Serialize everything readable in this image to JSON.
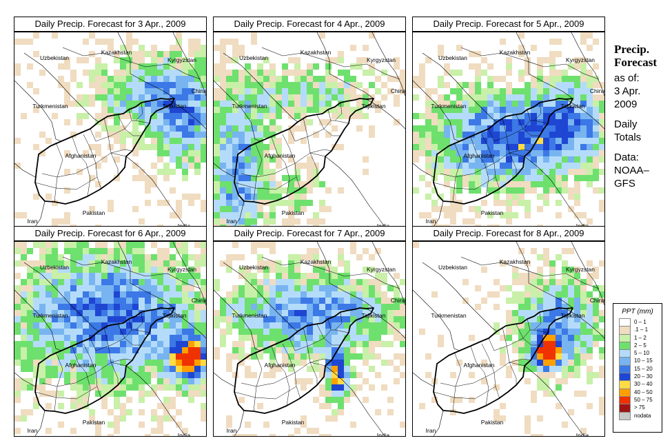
{
  "panels": [
    {
      "title": "Daily Precip. Forecast for  3 Apr., 2009",
      "day": 3
    },
    {
      "title": "Daily Precip. Forecast for  4 Apr., 2009",
      "day": 4
    },
    {
      "title": "Daily Precip. Forecast for  5 Apr., 2009",
      "day": 5
    },
    {
      "title": "Daily Precip. Forecast for  6 Apr., 2009",
      "day": 6
    },
    {
      "title": "Daily Precip. Forecast for  7 Apr., 2009",
      "day": 7
    },
    {
      "title": "Daily Precip. Forecast for  8 Apr., 2009",
      "day": 8
    }
  ],
  "labels": {
    "uzbekistan": "Uzbekistan",
    "kazakhstan": "Kazakhstan",
    "kyrgyzstan": "Kyrgyzstan",
    "china": "China",
    "tajikistan": "Tajikistan",
    "turkmenistan": "Turkmenistan",
    "afghanistan": "Afghanistan",
    "pakistan": "Pakistan",
    "iran": "Iran",
    "india": "India"
  },
  "sidebar": {
    "title_line1": "Precip.",
    "title_line2": "Forecast",
    "asof": "as of:",
    "date_line1": "3 Apr.",
    "date_line2": "2009",
    "totals_line1": "Daily",
    "totals_line2": "Totals",
    "data_line1": "Data:",
    "data_line2": "NOAA–",
    "data_line3": "GFS"
  },
  "legend": {
    "title": "PPT (mm)",
    "entries": [
      {
        "label": "0 – 1",
        "color": "#ffffff"
      },
      {
        "label": ".1 – 1",
        "color": "#f0dcc0"
      },
      {
        "label": "1 – 2",
        "color": "#c8f0a8"
      },
      {
        "label": "2 – 5",
        "color": "#6ee06e"
      },
      {
        "label": "5 – 10",
        "color": "#b4dcfa"
      },
      {
        "label": "10 – 15",
        "color": "#78b4f0"
      },
      {
        "label": "15 – 20",
        "color": "#3c78e6"
      },
      {
        "label": "20 – 30",
        "color": "#1e46d2"
      },
      {
        "label": "30 – 40",
        "color": "#ffdc46"
      },
      {
        "label": "40 – 50",
        "color": "#ffa000"
      },
      {
        "label": "50 – 75",
        "color": "#f03200"
      },
      {
        "label": "> 75",
        "color": "#a01414"
      },
      {
        "label": "nodata",
        "color": "#c8c8c8"
      }
    ]
  }
}
